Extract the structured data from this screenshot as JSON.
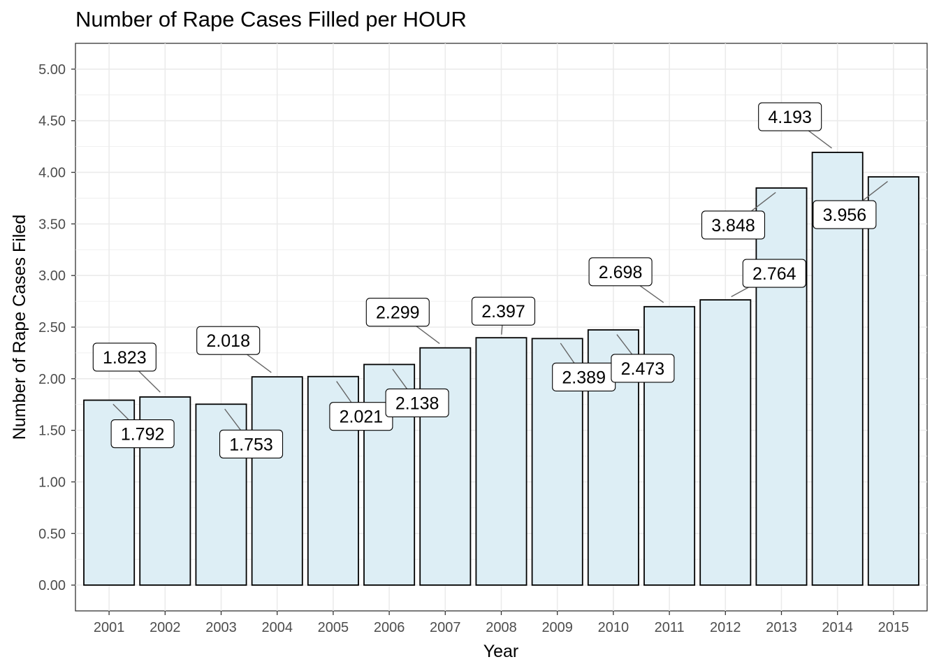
{
  "chart_data": {
    "type": "bar",
    "title": "Number of Rape Cases Filled per HOUR",
    "xlabel": "Year",
    "ylabel": "Number of Rape Cases Filed",
    "categories": [
      "2001",
      "2002",
      "2003",
      "2004",
      "2005",
      "2006",
      "2007",
      "2008",
      "2009",
      "2010",
      "2011",
      "2012",
      "2013",
      "2014",
      "2015"
    ],
    "values": [
      1.792,
      1.823,
      1.753,
      2.018,
      2.021,
      2.138,
      2.299,
      2.397,
      2.389,
      2.473,
      2.698,
      2.764,
      3.848,
      4.193,
      3.956
    ],
    "data_labels": [
      "1.792",
      "1.823",
      "1.753",
      "2.018",
      "2.021",
      "2.138",
      "2.299",
      "2.397",
      "2.389",
      "2.473",
      "2.698",
      "2.764",
      "3.848",
      "4.193",
      "3.956"
    ],
    "ylim": [
      -0.25,
      5.25
    ],
    "y_ticks": [
      "0.00",
      "0.50",
      "1.00",
      "1.50",
      "2.00",
      "2.50",
      "3.00",
      "3.50",
      "4.00",
      "4.50",
      "5.00"
    ],
    "grid": true,
    "bar_fill": "#ddeef5",
    "bar_stroke": "#000000",
    "grid_color": "#ebebeb"
  }
}
